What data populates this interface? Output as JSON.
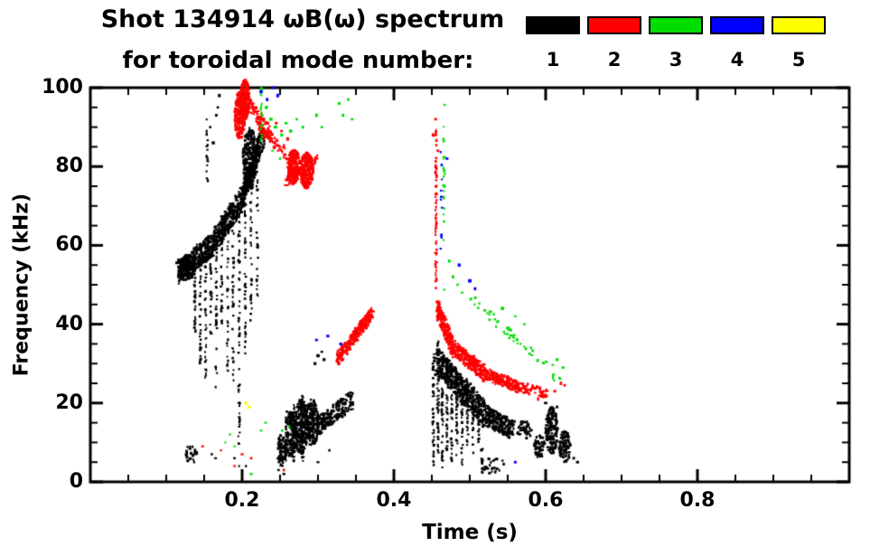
{
  "chart_data": {
    "type": "scatter",
    "title": "Shot 134914 ωB(ω) spectrum",
    "subtitle": "for toroidal mode number:",
    "xlabel": "Time (s)",
    "ylabel": "Frequency (kHz)",
    "xlim": [
      0,
      1.0
    ],
    "ylim": [
      0,
      100
    ],
    "xticks": [
      0.2,
      0.4,
      0.6,
      0.8
    ],
    "yticks": [
      0,
      20,
      40,
      60,
      80,
      100
    ],
    "grid": false,
    "legend_position": "top-right",
    "legend": [
      {
        "label": "1",
        "color": "#000000"
      },
      {
        "label": "2",
        "color": "#ff0000"
      },
      {
        "label": "3",
        "color": "#00dd00"
      },
      {
        "label": "4",
        "color": "#0000ff"
      },
      {
        "label": "5",
        "color": "#ffff00"
      }
    ],
    "series": [
      {
        "name": "n=1",
        "color": "#000000",
        "features": [
          {
            "t": "seg",
            "x0": 0.115,
            "y0": 53,
            "x1": 0.16,
            "y1": 60,
            "w": 6,
            "n": 350,
            "jx": 0.004
          },
          {
            "t": "seg",
            "x0": 0.16,
            "y0": 60,
            "x1": 0.2,
            "y1": 72,
            "w": 6,
            "n": 350,
            "jx": 0.004
          },
          {
            "t": "seg",
            "x0": 0.2,
            "y0": 72,
            "x1": 0.228,
            "y1": 88,
            "w": 6,
            "n": 300,
            "jx": 0.004
          },
          {
            "t": "blob",
            "x": 0.21,
            "y": 82,
            "rx": 0.009,
            "ry": 8,
            "n": 260
          },
          {
            "t": "blob",
            "x": 0.128,
            "y": 54,
            "rx": 0.01,
            "ry": 3,
            "n": 120
          },
          {
            "t": "v",
            "x": 0.138,
            "y0": 56,
            "y1": 38,
            "n": 30
          },
          {
            "t": "v",
            "x": 0.145,
            "y0": 57,
            "y1": 30,
            "n": 35
          },
          {
            "t": "v",
            "x": 0.152,
            "y0": 59,
            "y1": 26,
            "n": 35
          },
          {
            "t": "v",
            "x": 0.159,
            "y0": 60,
            "y1": 35,
            "n": 30
          },
          {
            "t": "v",
            "x": 0.166,
            "y0": 62,
            "y1": 22,
            "n": 40
          },
          {
            "t": "v",
            "x": 0.173,
            "y0": 63,
            "y1": 40,
            "n": 25
          },
          {
            "t": "v",
            "x": 0.181,
            "y0": 66,
            "y1": 28,
            "n": 35
          },
          {
            "t": "v",
            "x": 0.188,
            "y0": 68,
            "y1": 24,
            "n": 35
          },
          {
            "t": "v",
            "x": 0.196,
            "y0": 72,
            "y1": 8,
            "n": 60
          },
          {
            "t": "v",
            "x": 0.204,
            "y0": 75,
            "y1": 30,
            "n": 40
          },
          {
            "t": "v",
            "x": 0.212,
            "y0": 78,
            "y1": 40,
            "n": 35
          },
          {
            "t": "v",
            "x": 0.22,
            "y0": 82,
            "y1": 46,
            "n": 30
          },
          {
            "t": "v",
            "x": 0.154,
            "y0": 75,
            "y1": 92,
            "n": 18
          },
          {
            "t": "dots",
            "p": [
              [
                0.158,
                90
              ],
              [
                0.162,
                86
              ],
              [
                0.168,
                95
              ],
              [
                0.17,
                98
              ],
              [
                0.166,
                93
              ]
            ],
            "s": 3
          },
          {
            "t": "blob",
            "x": 0.252,
            "y": 8,
            "rx": 0.006,
            "ry": 4,
            "n": 80
          },
          {
            "t": "blob",
            "x": 0.265,
            "y": 12,
            "rx": 0.008,
            "ry": 6,
            "n": 160
          },
          {
            "t": "blob",
            "x": 0.278,
            "y": 14,
            "rx": 0.009,
            "ry": 7,
            "n": 220
          },
          {
            "t": "blob",
            "x": 0.292,
            "y": 15,
            "rx": 0.009,
            "ry": 6,
            "n": 200
          },
          {
            "t": "seg",
            "x0": 0.3,
            "y0": 14,
            "x1": 0.345,
            "y1": 21,
            "w": 5,
            "n": 200,
            "jx": 0.004
          },
          {
            "t": "v",
            "x": 0.258,
            "y0": 18,
            "y1": 4,
            "n": 25
          },
          {
            "t": "v",
            "x": 0.268,
            "y0": 20,
            "y1": 5,
            "n": 25
          },
          {
            "t": "v",
            "x": 0.28,
            "y0": 22,
            "y1": 5,
            "n": 25
          },
          {
            "t": "dots",
            "p": [
              [
                0.3,
                32
              ],
              [
                0.305,
                33
              ],
              [
                0.296,
                30
              ],
              [
                0.308,
                31
              ]
            ],
            "s": 3
          },
          {
            "t": "dots",
            "p": [
              [
                0.248,
                3
              ],
              [
                0.255,
                2
              ],
              [
                0.3,
                5
              ],
              [
                0.315,
                8
              ]
            ],
            "s": 2.5
          },
          {
            "t": "v",
            "x": 0.452,
            "y0": 35,
            "y1": 4,
            "n": 50
          },
          {
            "t": "v",
            "x": 0.458,
            "y0": 36,
            "y1": 6,
            "n": 50
          },
          {
            "t": "v",
            "x": 0.464,
            "y0": 33,
            "y1": 3,
            "n": 45
          },
          {
            "t": "v",
            "x": 0.47,
            "y0": 32,
            "y1": 8,
            "n": 40
          },
          {
            "t": "v",
            "x": 0.476,
            "y0": 30,
            "y1": 5,
            "n": 40
          },
          {
            "t": "v",
            "x": 0.483,
            "y0": 28,
            "y1": 6,
            "n": 35
          },
          {
            "t": "v",
            "x": 0.49,
            "y0": 26,
            "y1": 4,
            "n": 35
          },
          {
            "t": "v",
            "x": 0.497,
            "y0": 25,
            "y1": 8,
            "n": 30
          },
          {
            "t": "v",
            "x": 0.504,
            "y0": 24,
            "y1": 7,
            "n": 30
          },
          {
            "t": "v",
            "x": 0.512,
            "y0": 22,
            "y1": 10,
            "n": 25
          },
          {
            "t": "seg",
            "x0": 0.455,
            "y0": 31,
            "x1": 0.52,
            "y1": 17,
            "w": 7,
            "n": 450,
            "jx": 0.004
          },
          {
            "t": "seg",
            "x0": 0.52,
            "y0": 17,
            "x1": 0.558,
            "y1": 13,
            "w": 5,
            "n": 220,
            "jx": 0.004
          },
          {
            "t": "blob",
            "x": 0.572,
            "y": 13,
            "rx": 0.01,
            "ry": 2.5,
            "n": 40
          },
          {
            "t": "blob",
            "x": 0.532,
            "y": 4,
            "rx": 0.018,
            "ry": 2,
            "n": 30
          },
          {
            "t": "v",
            "x": 0.516,
            "y0": 9,
            "y1": 2,
            "n": 15
          },
          {
            "t": "blob",
            "x": 0.592,
            "y": 9,
            "rx": 0.007,
            "ry": 3,
            "n": 60
          },
          {
            "t": "blob",
            "x": 0.608,
            "y": 13,
            "rx": 0.008,
            "ry": 6,
            "n": 160
          },
          {
            "t": "blob",
            "x": 0.625,
            "y": 9,
            "rx": 0.008,
            "ry": 4,
            "n": 90
          },
          {
            "t": "dots",
            "p": [
              [
                0.637,
                6
              ],
              [
                0.642,
                5
              ],
              [
                0.6,
                20
              ],
              [
                0.615,
                19
              ]
            ],
            "s": 3
          },
          {
            "t": "blob",
            "x": 0.133,
            "y": 7,
            "rx": 0.008,
            "ry": 2.5,
            "n": 25
          },
          {
            "t": "dots",
            "p": [
              [
                0.16,
                7
              ],
              [
                0.165,
                6
              ],
              [
                0.19,
                6
              ],
              [
                0.196,
                4
              ],
              [
                0.205,
                4
              ]
            ],
            "s": 2.5
          }
        ]
      },
      {
        "name": "n=2",
        "color": "#ff0000",
        "features": [
          {
            "t": "blob",
            "x": 0.197,
            "y": 93,
            "rx": 0.007,
            "ry": 6,
            "n": 260
          },
          {
            "t": "blob",
            "x": 0.204,
            "y": 97,
            "rx": 0.006,
            "ry": 5,
            "n": 200
          },
          {
            "t": "seg",
            "x0": 0.208,
            "y0": 96,
            "x1": 0.238,
            "y1": 88,
            "w": 4,
            "n": 90,
            "jx": 0.003
          },
          {
            "t": "seg",
            "x0": 0.222,
            "y0": 90,
            "x1": 0.258,
            "y1": 83,
            "w": 3,
            "n": 60,
            "jx": 0.003
          },
          {
            "t": "dots",
            "p": [
              [
                0.245,
                91
              ],
              [
                0.252,
                89
              ],
              [
                0.26,
                87
              ]
            ],
            "s": 3
          },
          {
            "t": "blob",
            "x": 0.268,
            "y": 80,
            "rx": 0.008,
            "ry": 4.5,
            "n": 220
          },
          {
            "t": "blob",
            "x": 0.285,
            "y": 79,
            "rx": 0.009,
            "ry": 4.5,
            "n": 240
          },
          {
            "t": "seg",
            "x0": 0.258,
            "y0": 76,
            "x1": 0.3,
            "y1": 82,
            "w": 3,
            "n": 80,
            "jx": 0.003
          },
          {
            "t": "seg",
            "x0": 0.325,
            "y0": 31,
            "x1": 0.372,
            "y1": 43,
            "w": 3.5,
            "n": 300,
            "jx": 0.003
          },
          {
            "t": "v",
            "x": 0.4555,
            "y0": 90,
            "y1": 48,
            "n": 70
          },
          {
            "t": "dots",
            "p": [
              [
                0.452,
                88
              ],
              [
                0.458,
                84
              ],
              [
                0.455,
                92
              ]
            ],
            "s": 3
          },
          {
            "t": "seg",
            "x0": 0.457,
            "y0": 44,
            "x1": 0.478,
            "y1": 34,
            "w": 5,
            "n": 220,
            "jx": 0.003
          },
          {
            "t": "seg",
            "x0": 0.478,
            "y0": 34,
            "x1": 0.52,
            "y1": 27.5,
            "w": 4,
            "n": 260,
            "jx": 0.004
          },
          {
            "t": "seg",
            "x0": 0.52,
            "y0": 27.5,
            "x1": 0.565,
            "y1": 24,
            "w": 3,
            "n": 180,
            "jx": 0.004
          },
          {
            "t": "seg",
            "x0": 0.565,
            "y0": 24,
            "x1": 0.602,
            "y1": 22.5,
            "w": 2.5,
            "n": 70,
            "jx": 0.004
          },
          {
            "t": "dots",
            "p": [
              [
                0.612,
                23
              ],
              [
                0.62,
                25
              ],
              [
                0.625,
                24.5
              ],
              [
                0.59,
                21
              ]
            ],
            "s": 3
          },
          {
            "t": "dots",
            "p": [
              [
                0.148,
                9
              ],
              [
                0.172,
                8
              ],
              [
                0.19,
                4
              ],
              [
                0.2,
                7
              ],
              [
                0.255,
                3
              ],
              [
                0.212,
                6
              ]
            ],
            "s": 2.5
          }
        ]
      },
      {
        "name": "n=3",
        "color": "#00dd00",
        "features": [
          {
            "t": "v",
            "x": 0.2255,
            "y0": 86,
            "y1": 100,
            "n": 20
          },
          {
            "t": "dots",
            "p": [
              [
                0.232,
                95
              ],
              [
                0.238,
                92
              ],
              [
                0.244,
                90
              ],
              [
                0.252,
                88
              ],
              [
                0.258,
                91
              ],
              [
                0.264,
                89
              ],
              [
                0.272,
                92
              ],
              [
                0.28,
                90
              ]
            ],
            "s": 3
          },
          {
            "t": "dots",
            "p": [
              [
                0.298,
                93
              ],
              [
                0.305,
                90
              ],
              [
                0.328,
                96
              ],
              [
                0.333,
                93
              ],
              [
                0.34,
                97
              ],
              [
                0.345,
                92
              ]
            ],
            "s": 3
          },
          {
            "t": "dots",
            "p": [
              [
                0.24,
                84
              ],
              [
                0.25,
                82
              ]
            ],
            "s": 2.5
          },
          {
            "t": "v",
            "x": 0.466,
            "y0": 48,
            "y1": 98,
            "n": 26
          },
          {
            "t": "dots",
            "p": [
              [
                0.473,
                56
              ],
              [
                0.478,
                52
              ],
              [
                0.484,
                50
              ],
              [
                0.49,
                48
              ]
            ],
            "s": 3
          },
          {
            "t": "seg",
            "x0": 0.5,
            "y0": 47,
            "x1": 0.62,
            "y1": 26,
            "w": 3,
            "n": 55,
            "jx": 0.005
          },
          {
            "t": "dots",
            "p": [
              [
                0.56,
                42
              ],
              [
                0.572,
                40
              ],
              [
                0.615,
                31
              ],
              [
                0.623,
                29
              ],
              [
                0.543,
                44
              ]
            ],
            "s": 3
          },
          {
            "t": "dots",
            "p": [
              [
                0.178,
                10
              ],
              [
                0.184,
                12
              ],
              [
                0.19,
                9
              ],
              [
                0.225,
                13
              ],
              [
                0.231,
                15
              ],
              [
                0.253,
                13
              ],
              [
                0.212,
                2
              ],
              [
                0.262,
                14
              ]
            ],
            "s": 2.5
          }
        ]
      },
      {
        "name": "n=4",
        "color": "#0000ff",
        "features": [
          {
            "t": "dots",
            "p": [
              [
                0.225,
                99
              ],
              [
                0.233,
                97
              ],
              [
                0.241,
                100
              ],
              [
                0.247,
                98
              ]
            ],
            "s": 3
          },
          {
            "t": "dots",
            "p": [
              [
                0.298,
                36
              ],
              [
                0.313,
                37
              ],
              [
                0.33,
                35
              ]
            ],
            "s": 3
          },
          {
            "t": "v",
            "x": 0.4625,
            "y0": 58,
            "y1": 85,
            "n": 12
          },
          {
            "t": "dots",
            "p": [
              [
                0.47,
                82
              ],
              [
                0.486,
                55
              ],
              [
                0.5,
                51
              ],
              [
                0.507,
                49
              ]
            ],
            "s": 3
          },
          {
            "t": "dots",
            "p": [
              [
                0.56,
                5
              ]
            ],
            "s": 2.5
          }
        ]
      },
      {
        "name": "n=5",
        "color": "#ffff00",
        "features": [
          {
            "t": "dots",
            "p": [
              [
                0.205,
                20
              ],
              [
                0.209,
                19
              ]
            ],
            "s": 3
          }
        ]
      }
    ]
  }
}
